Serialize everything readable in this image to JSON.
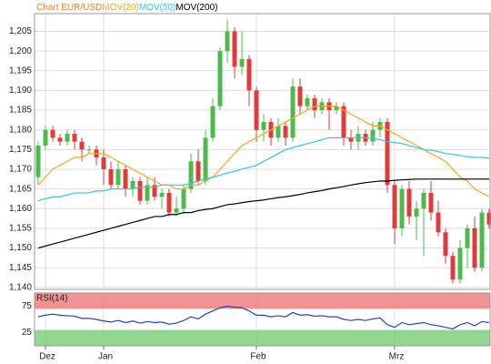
{
  "chart_data": [
    {
      "type": "candlestick",
      "title": "Chart EUR/USD",
      "title_color": "#f08030",
      "categories": [
        null,
        "Dez",
        null,
        null,
        null,
        null,
        null,
        null,
        null,
        "Jan",
        null,
        null,
        null,
        null,
        null,
        null,
        null,
        null,
        null,
        null,
        null,
        null,
        null,
        null,
        null,
        null,
        null,
        null,
        null,
        null,
        "Feb",
        null,
        null,
        null,
        null,
        null,
        null,
        null,
        null,
        null,
        null,
        null,
        null,
        null,
        null,
        null,
        null,
        null,
        null,
        "Mrz",
        null,
        null,
        null,
        null,
        null,
        null,
        null,
        null,
        null,
        null,
        null,
        null,
        null
      ],
      "open": [
        1.168,
        1.176,
        1.18,
        1.178,
        1.177,
        1.179,
        1.177,
        1.175,
        1.175,
        1.173,
        1.17,
        1.166,
        1.17,
        1.165,
        1.167,
        1.162,
        1.166,
        1.163,
        1.164,
        1.159,
        1.16,
        1.165,
        1.172,
        1.167,
        1.178,
        1.186,
        1.2,
        1.205,
        1.196,
        1.198,
        1.19,
        1.18,
        1.182,
        1.178,
        1.181,
        1.178,
        1.191,
        1.186,
        1.188,
        1.185,
        1.187,
        1.185,
        1.186,
        1.178,
        1.177,
        1.179,
        1.177,
        1.18,
        1.182,
        1.166,
        1.155,
        1.165,
        1.158,
        1.16,
        1.164,
        1.159,
        1.154,
        1.148,
        1.142,
        1.15,
        1.155,
        1.145,
        1.159
      ],
      "high": [
        1.177,
        1.181,
        1.181,
        1.179,
        1.18,
        1.18,
        1.178,
        1.176,
        1.176,
        1.175,
        1.172,
        1.172,
        1.171,
        1.168,
        1.168,
        1.168,
        1.168,
        1.165,
        1.165,
        1.163,
        1.166,
        1.174,
        1.175,
        1.18,
        1.188,
        1.201,
        1.208,
        1.206,
        1.205,
        1.199,
        1.191,
        1.184,
        1.183,
        1.183,
        1.182,
        1.193,
        1.193,
        1.189,
        1.189,
        1.188,
        1.188,
        1.187,
        1.187,
        1.18,
        1.181,
        1.18,
        1.182,
        1.183,
        1.183,
        1.167,
        1.166,
        1.167,
        1.162,
        1.165,
        1.167,
        1.162,
        1.155,
        1.149,
        1.152,
        1.156,
        1.158,
        1.16,
        1.16
      ],
      "low": [
        1.166,
        1.175,
        1.177,
        1.176,
        1.176,
        1.175,
        1.172,
        1.174,
        1.171,
        1.166,
        1.165,
        1.165,
        1.163,
        1.163,
        1.161,
        1.161,
        1.162,
        1.16,
        1.158,
        1.158,
        1.159,
        1.164,
        1.166,
        1.166,
        1.177,
        1.185,
        1.197,
        1.193,
        1.194,
        1.186,
        1.177,
        1.177,
        1.176,
        1.177,
        1.176,
        1.177,
        1.184,
        1.185,
        1.183,
        1.184,
        1.18,
        1.184,
        1.176,
        1.175,
        1.175,
        1.176,
        1.176,
        1.178,
        1.164,
        1.151,
        1.153,
        1.156,
        1.152,
        1.148,
        1.157,
        1.153,
        1.146,
        1.141,
        1.141,
        1.145,
        1.144,
        1.144,
        1.155
      ],
      "close": [
        1.176,
        1.18,
        1.178,
        1.177,
        1.179,
        1.177,
        1.175,
        1.175,
        1.173,
        1.17,
        1.166,
        1.17,
        1.165,
        1.167,
        1.162,
        1.166,
        1.163,
        1.164,
        1.159,
        1.16,
        1.165,
        1.172,
        1.167,
        1.178,
        1.186,
        1.2,
        1.205,
        1.196,
        1.198,
        1.19,
        1.18,
        1.182,
        1.178,
        1.181,
        1.178,
        1.191,
        1.186,
        1.188,
        1.185,
        1.187,
        1.185,
        1.186,
        1.178,
        1.177,
        1.179,
        1.177,
        1.18,
        1.182,
        1.166,
        1.155,
        1.165,
        1.158,
        1.16,
        1.164,
        1.159,
        1.154,
        1.148,
        1.142,
        1.15,
        1.155,
        1.145,
        1.159,
        1.156
      ],
      "up_color": "#4cbb4c",
      "down_color": "#e23a3a",
      "series": [
        {
          "name": "MOV(20)",
          "color": "#f5a623",
          "values": [
            1.166,
            1.168,
            1.17,
            1.171,
            1.172,
            1.173,
            1.173,
            1.174,
            1.174,
            1.174,
            1.173,
            1.172,
            1.171,
            1.17,
            1.169,
            1.168,
            1.167,
            1.166,
            1.166,
            1.165,
            1.165,
            1.166,
            1.166,
            1.167,
            1.168,
            1.17,
            1.172,
            1.174,
            1.176,
            1.177,
            1.178,
            1.179,
            1.18,
            1.181,
            1.182,
            1.183,
            1.184,
            1.185,
            1.186,
            1.186,
            1.186,
            1.186,
            1.185,
            1.184,
            1.183,
            1.182,
            1.181,
            1.181,
            1.18,
            1.179,
            1.178,
            1.177,
            1.176,
            1.175,
            1.174,
            1.173,
            1.172,
            1.17,
            1.168,
            1.167,
            1.165,
            1.164,
            1.163
          ]
        },
        {
          "name": "MOV(50)",
          "color": "#33c8dd",
          "values": [
            1.162,
            1.1625,
            1.163,
            1.163,
            1.1635,
            1.164,
            1.164,
            1.164,
            1.1645,
            1.1645,
            1.165,
            1.165,
            1.165,
            1.165,
            1.1655,
            1.1655,
            1.1655,
            1.166,
            1.166,
            1.166,
            1.166,
            1.1665,
            1.167,
            1.1675,
            1.168,
            1.1685,
            1.169,
            1.1695,
            1.17,
            1.1705,
            1.171,
            1.172,
            1.173,
            1.174,
            1.175,
            1.1755,
            1.176,
            1.1765,
            1.177,
            1.1775,
            1.178,
            1.178,
            1.178,
            1.178,
            1.178,
            1.178,
            1.1778,
            1.1775,
            1.177,
            1.1768,
            1.1765,
            1.176,
            1.1755,
            1.175,
            1.1748,
            1.1745,
            1.174,
            1.1738,
            1.1735,
            1.1732,
            1.173,
            1.173,
            1.1728
          ]
        },
        {
          "name": "MOV(200)",
          "color": "#000000",
          "values": [
            1.15,
            1.1505,
            1.151,
            1.1515,
            1.152,
            1.1525,
            1.153,
            1.1535,
            1.154,
            1.1545,
            1.155,
            1.1555,
            1.156,
            1.1565,
            1.157,
            1.1575,
            1.158,
            1.158,
            1.1585,
            1.1585,
            1.159,
            1.159,
            1.1595,
            1.1598,
            1.16,
            1.1605,
            1.161,
            1.1612,
            1.1615,
            1.1618,
            1.162,
            1.1622,
            1.1625,
            1.1628,
            1.163,
            1.1633,
            1.1636,
            1.164,
            1.1643,
            1.1646,
            1.165,
            1.1653,
            1.1656,
            1.166,
            1.1663,
            1.1666,
            1.1668,
            1.167,
            1.167,
            1.1672,
            1.1673,
            1.1674,
            1.1675,
            1.1675,
            1.1675,
            1.1675,
            1.1675,
            1.1675,
            1.1675,
            1.1675,
            1.1675,
            1.1675,
            1.1675
          ]
        }
      ],
      "ylim": [
        1.1395,
        1.2095
      ],
      "yticks": [
        {
          "value": 1.14,
          "label": "1,140"
        },
        {
          "value": 1.145,
          "label": "1,145"
        },
        {
          "value": 1.15,
          "label": "1,150"
        },
        {
          "value": 1.155,
          "label": "1,155"
        },
        {
          "value": 1.16,
          "label": "1,160"
        },
        {
          "value": 1.165,
          "label": "1,165"
        },
        {
          "value": 1.17,
          "label": "1,170"
        },
        {
          "value": 1.175,
          "label": "1,175"
        },
        {
          "value": 1.18,
          "label": "1,180"
        },
        {
          "value": 1.185,
          "label": "1,185"
        },
        {
          "value": 1.19,
          "label": "1,190"
        },
        {
          "value": 1.195,
          "label": "1,195"
        },
        {
          "value": 1.2,
          "label": "1,200"
        },
        {
          "value": 1.205,
          "label": "1,205"
        }
      ],
      "grid": true
    },
    {
      "type": "line",
      "series": [
        {
          "name": "RSI(14)",
          "color": "#2244cc",
          "values": [
            55,
            58,
            60,
            58,
            57,
            56,
            52,
            52,
            50,
            47,
            45,
            48,
            44,
            47,
            43,
            46,
            44,
            45,
            41,
            43,
            48,
            55,
            51,
            60,
            66,
            72,
            75,
            73,
            72,
            66,
            58,
            58,
            55,
            57,
            55,
            63,
            58,
            59,
            56,
            57,
            55,
            55,
            50,
            48,
            50,
            48,
            51,
            53,
            40,
            35,
            44,
            40,
            42,
            44,
            40,
            38,
            35,
            32,
            40,
            44,
            38,
            46,
            44
          ]
        }
      ],
      "ylim": [
        0,
        100
      ],
      "yticks": [
        25,
        75
      ],
      "bands": [
        {
          "from": 70,
          "to": 100,
          "color": "#f08080"
        },
        {
          "from": 0,
          "to": 30,
          "color": "#7ed07e"
        }
      ],
      "grid": true
    }
  ]
}
